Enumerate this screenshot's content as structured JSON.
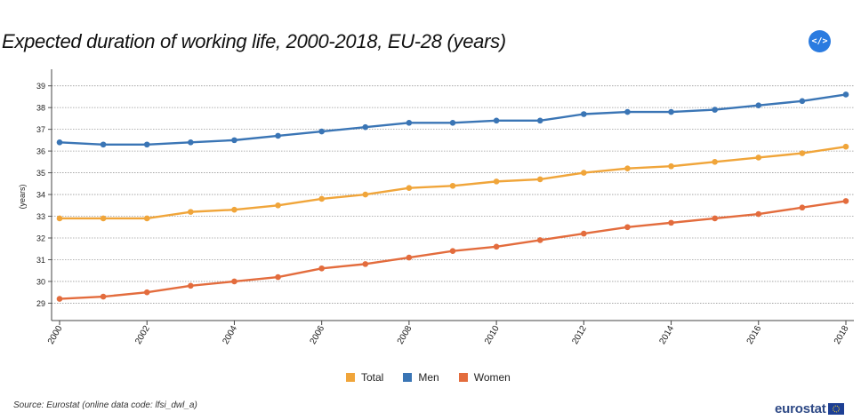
{
  "title": "Expected duration of working life, 2000-2018, EU-28 (years)",
  "embed_icon": "code-embed-icon",
  "embed_label": "</>",
  "source": "Source: Eurostat (online data code: lfsi_dwl_a)",
  "logo_text": "eurostat",
  "colors": {
    "total": "#f0a53a",
    "men": "#3a75b5",
    "women": "#e36c3d",
    "accent": "#2a7be0",
    "logo": "#2f4a86"
  },
  "chart_data": {
    "type": "line",
    "title": "Expected duration of working life, 2000-2018, EU-28 (years)",
    "xlabel": "",
    "ylabel": "(years)",
    "ylim": [
      28.2,
      39.6
    ],
    "y_ticks": [
      "29",
      "30",
      "31",
      "32",
      "33",
      "34",
      "35",
      "36",
      "37",
      "38",
      "39"
    ],
    "x": [
      2000,
      2001,
      2002,
      2003,
      2004,
      2005,
      2006,
      2007,
      2008,
      2009,
      2010,
      2011,
      2012,
      2013,
      2014,
      2015,
      2016,
      2017,
      2018
    ],
    "x_ticks": [
      "2000",
      "2002",
      "2004",
      "2006",
      "2008",
      "2010",
      "2012",
      "2014",
      "2016",
      "2018"
    ],
    "grid": true,
    "legend_position": "bottom-center",
    "series": [
      {
        "name": "Total",
        "color": "#f0a53a",
        "values": [
          32.9,
          32.9,
          32.9,
          33.2,
          33.3,
          33.5,
          33.8,
          34.0,
          34.3,
          34.4,
          34.6,
          34.7,
          35.0,
          35.2,
          35.3,
          35.5,
          35.7,
          35.9,
          36.2
        ]
      },
      {
        "name": "Men",
        "color": "#3a75b5",
        "values": [
          36.4,
          36.3,
          36.3,
          36.4,
          36.5,
          36.7,
          36.9,
          37.1,
          37.3,
          37.3,
          37.4,
          37.4,
          37.7,
          37.8,
          37.8,
          37.9,
          38.1,
          38.3,
          38.6
        ]
      },
      {
        "name": "Women",
        "color": "#e36c3d",
        "values": [
          29.2,
          29.3,
          29.5,
          29.8,
          30.0,
          30.2,
          30.6,
          30.8,
          31.1,
          31.4,
          31.6,
          31.9,
          32.2,
          32.5,
          32.7,
          32.9,
          33.1,
          33.4,
          33.7
        ]
      }
    ]
  }
}
